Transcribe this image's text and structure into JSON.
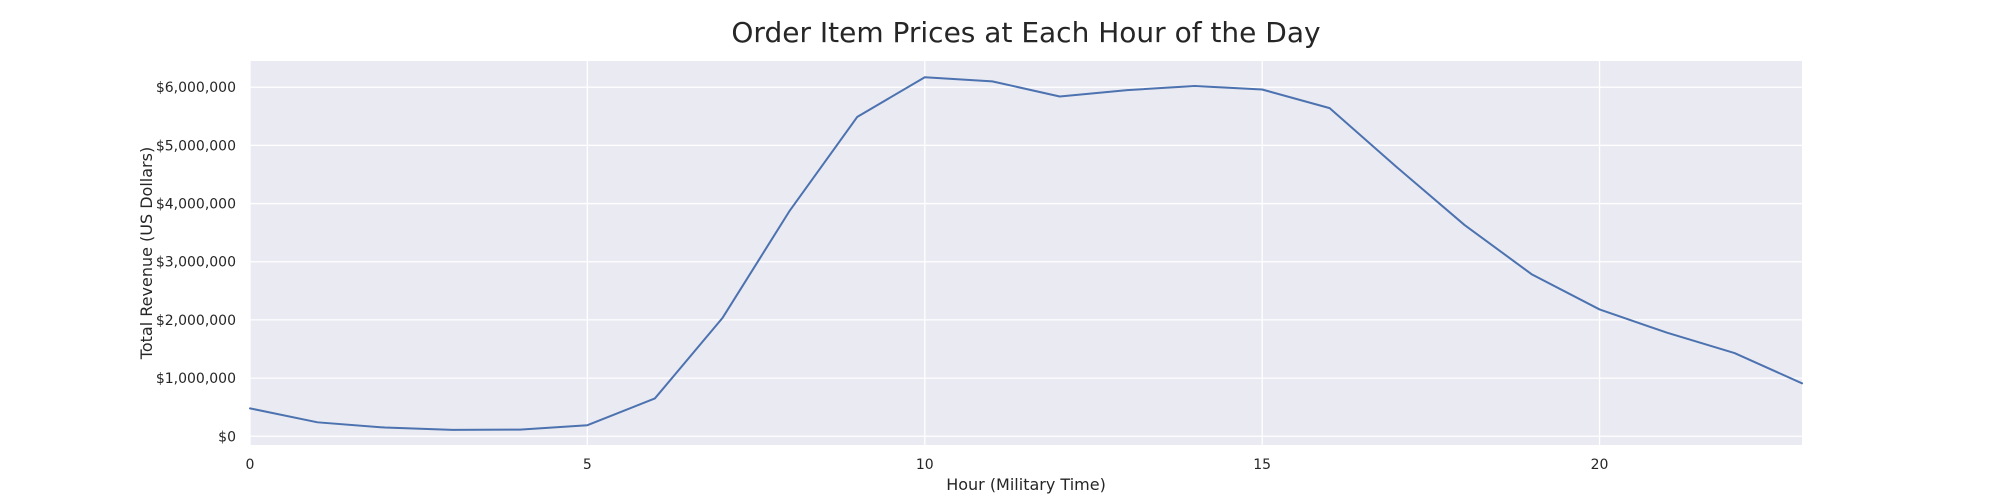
{
  "chart_data": {
    "type": "line",
    "title": "Order Item Prices at Each Hour of the Day",
    "xlabel": "Hour (Military Time)",
    "ylabel": "Total Revenue (US Dollars)",
    "xlim": [
      0,
      23
    ],
    "ylim": [
      -150000,
      6450000
    ],
    "xticks": [
      0,
      5,
      10,
      15,
      20
    ],
    "xtick_labels": [
      "0",
      "5",
      "10",
      "15",
      "20"
    ],
    "yticks": [
      0,
      1000000,
      2000000,
      3000000,
      4000000,
      5000000,
      6000000
    ],
    "ytick_labels": [
      "$0",
      "$1,000,000",
      "$2,000,000",
      "$3,000,000",
      "$4,000,000",
      "$5,000,000",
      "$6,000,000"
    ],
    "grid": true,
    "background_color": "#eaeaf2",
    "grid_color": "#ffffff",
    "line_color": "#4c72b0",
    "x": [
      0,
      1,
      2,
      3,
      4,
      5,
      6,
      7,
      8,
      9,
      10,
      11,
      12,
      13,
      14,
      15,
      16,
      17,
      18,
      19,
      20,
      21,
      22,
      23
    ],
    "series": [
      {
        "values": [
          480000,
          240000,
          150000,
          110000,
          115000,
          190000,
          650000,
          2030000,
          3880000,
          5490000,
          6170000,
          6100000,
          5840000,
          5950000,
          6020000,
          5960000,
          5640000,
          4620000,
          3630000,
          2780000,
          2180000,
          1780000,
          1430000,
          910000
        ]
      }
    ]
  }
}
